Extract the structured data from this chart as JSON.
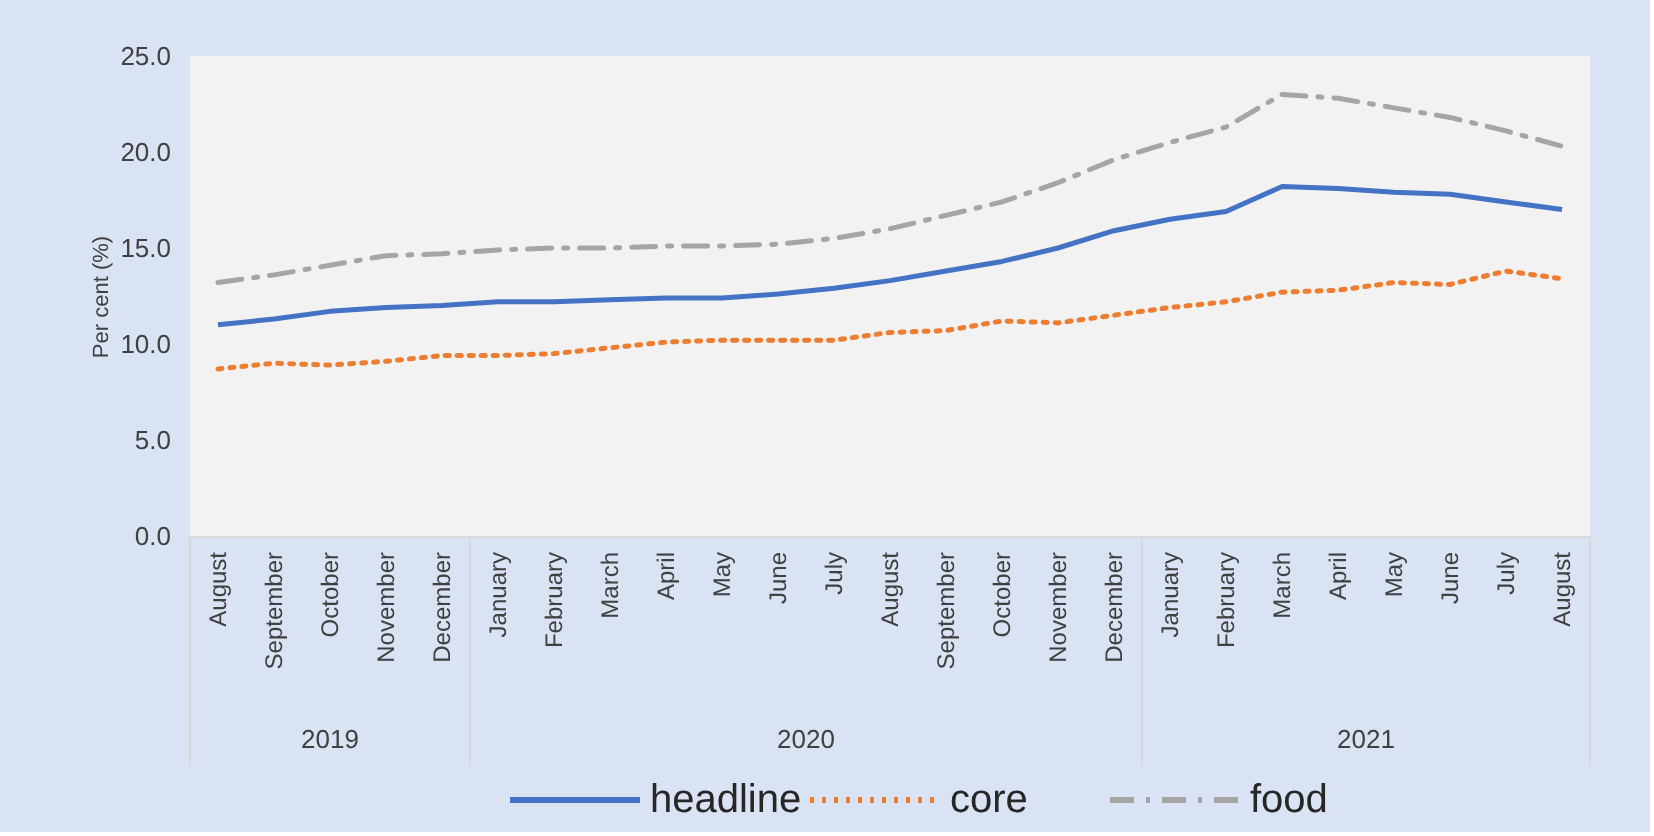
{
  "chart_data": {
    "type": "line",
    "ylabel": "Per cent (%)",
    "categories": [
      "August",
      "September",
      "October",
      "November",
      "December",
      "January",
      "February",
      "March",
      "April",
      "May",
      "June",
      "July",
      "August",
      "September",
      "October",
      "November",
      "December",
      "January",
      "February",
      "March",
      "April",
      "May",
      "June",
      "July",
      "August"
    ],
    "series": [
      {
        "name": "headline",
        "color": "#4472c4",
        "line_style": "solid",
        "values": [
          11.0,
          11.3,
          11.7,
          11.9,
          12.0,
          12.2,
          12.2,
          12.3,
          12.4,
          12.4,
          12.6,
          12.9,
          13.3,
          13.8,
          14.3,
          15.0,
          15.9,
          16.5,
          16.9,
          18.2,
          18.1,
          17.9,
          17.8,
          17.4,
          17.0
        ]
      },
      {
        "name": "core",
        "color": "#ed7d31",
        "line_style": "dotted",
        "values": [
          8.7,
          9.0,
          8.9,
          9.1,
          9.4,
          9.4,
          9.5,
          9.8,
          10.1,
          10.2,
          10.2,
          10.2,
          10.6,
          10.7,
          11.2,
          11.1,
          11.5,
          11.9,
          12.2,
          12.7,
          12.8,
          13.2,
          13.1,
          13.8,
          13.4
        ]
      },
      {
        "name": "food",
        "color": "#a5a5a5",
        "line_style": "dashed",
        "values": [
          13.2,
          13.6,
          14.1,
          14.6,
          14.7,
          14.9,
          15.0,
          15.0,
          15.1,
          15.1,
          15.2,
          15.5,
          16.0,
          16.7,
          17.4,
          18.4,
          19.6,
          20.5,
          21.3,
          23.0,
          22.8,
          22.3,
          21.8,
          21.1,
          20.3
        ]
      }
    ],
    "ylim": [
      0,
      25
    ],
    "yticks": [
      {
        "value": 0,
        "label": "0.0"
      },
      {
        "value": 5,
        "label": "5.0"
      },
      {
        "value": 10,
        "label": "10.0"
      },
      {
        "value": 15,
        "label": "15.0"
      },
      {
        "value": 20,
        "label": "20.0"
      },
      {
        "value": 25,
        "label": "25.0"
      }
    ],
    "annotations": [
      "2019",
      "2020",
      "2021"
    ],
    "legend": "bottom"
  }
}
